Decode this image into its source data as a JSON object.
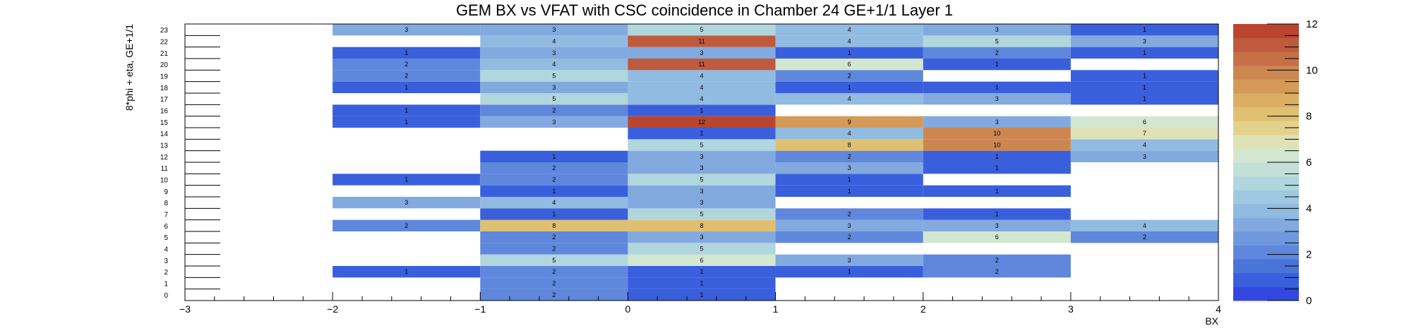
{
  "chart_data": {
    "type": "heatmap",
    "title": "GEM BX vs VFAT with CSC coincidence in Chamber 24 GE+1/1 Layer 1",
    "xlabel": "BX",
    "ylabel": "8*phi + eta, GE+1/1",
    "xlim": [
      -3,
      4
    ],
    "ylim": [
      0,
      24
    ],
    "zlim": [
      0,
      12
    ],
    "x_bins": [
      [
        -2,
        -1
      ],
      [
        -1,
        0
      ],
      [
        0,
        1
      ],
      [
        1,
        2
      ],
      [
        2,
        3
      ],
      [
        3,
        4
      ]
    ],
    "x_ticks": [
      "−3",
      "−2",
      "−1",
      "0",
      "1",
      "2",
      "3",
      "4"
    ],
    "y_ticks": [
      "0",
      "1",
      "2",
      "3",
      "4",
      "5",
      "6",
      "7",
      "8",
      "9",
      "10",
      "11",
      "12",
      "13",
      "14",
      "15",
      "16",
      "17",
      "18",
      "19",
      "20",
      "21",
      "22",
      "23"
    ],
    "z_ticks": [
      "0",
      "2",
      "4",
      "6",
      "8",
      "10",
      "12"
    ],
    "rows": [
      [
        0,
        2,
        1,
        0,
        0,
        0
      ],
      [
        0,
        2,
        1,
        0,
        0,
        0
      ],
      [
        1,
        2,
        1,
        1,
        2,
        0
      ],
      [
        0,
        5,
        6,
        3,
        2,
        0
      ],
      [
        0,
        2,
        5,
        0,
        0,
        0
      ],
      [
        0,
        2,
        3,
        2,
        6,
        2
      ],
      [
        2,
        8,
        8,
        3,
        3,
        4
      ],
      [
        0,
        1,
        5,
        2,
        1,
        0
      ],
      [
        3,
        4,
        3,
        0,
        0,
        0
      ],
      [
        0,
        1,
        3,
        1,
        1,
        0
      ],
      [
        1,
        2,
        5,
        1,
        0,
        0
      ],
      [
        0,
        2,
        3,
        3,
        1,
        0
      ],
      [
        0,
        1,
        3,
        2,
        1,
        3
      ],
      [
        0,
        0,
        5,
        8,
        10,
        4
      ],
      [
        0,
        0,
        1,
        4,
        10,
        7
      ],
      [
        1,
        3,
        12,
        9,
        3,
        6
      ],
      [
        1,
        2,
        1,
        0,
        0,
        0
      ],
      [
        0,
        5,
        4,
        4,
        3,
        1
      ],
      [
        1,
        3,
        4,
        1,
        1,
        1
      ],
      [
        2,
        5,
        4,
        2,
        0,
        1
      ],
      [
        2,
        4,
        11,
        6,
        1,
        0
      ],
      [
        1,
        3,
        3,
        1,
        2,
        1
      ],
      [
        0,
        4,
        11,
        4,
        5,
        3
      ],
      [
        3,
        3,
        5,
        4,
        3,
        1
      ]
    ],
    "grid": false,
    "palette": [
      "#3447e0",
      "#3a5fdc",
      "#4a74d8",
      "#5f87dc",
      "#6f98de",
      "#82aadf",
      "#91bbe0",
      "#9ec9e0",
      "#b0d6de",
      "#c2e0d8",
      "#d3e6cf",
      "#dfe2b6",
      "#e3d28c",
      "#dfc072",
      "#dcae64",
      "#d49a58",
      "#cc8650",
      "#c67048",
      "#c05a3e",
      "#b9452f"
    ]
  }
}
